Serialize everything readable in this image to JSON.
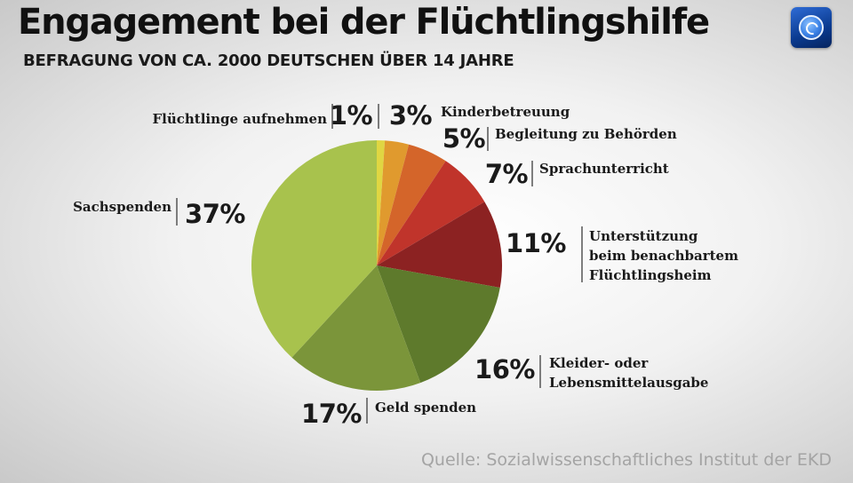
{
  "title": "Engagement bei der Flüchtlingshilfe",
  "subtitle": "BEFRAGUNG VON CA. 2000 DEUTSCHEN ÜBER 14 JAHRE",
  "logo_icon": "tagesschau-globe-icon",
  "source": "Quelle: Sozialwissenschaftliches Institut der EKD",
  "chart_data": {
    "type": "pie",
    "unit": "%",
    "start": "top",
    "direction": "clockwise",
    "slices": [
      {
        "label": "Flüchtlinge aufnehmen",
        "label_lines": [
          "Flüchtlinge aufnehmen"
        ],
        "value": 1,
        "pct_text": "1%",
        "color": "#e0d642",
        "side": "left"
      },
      {
        "label": "Kinderbetreuung",
        "label_lines": [
          "Kinderbetreuung"
        ],
        "value": 3,
        "pct_text": "3%",
        "color": "#e09a2e",
        "side": "right"
      },
      {
        "label": "Begleitung zu Behörden",
        "label_lines": [
          "Begleitung zu Behörden"
        ],
        "value": 5,
        "pct_text": "5%",
        "color": "#d4652a",
        "side": "right"
      },
      {
        "label": "Sprachunterricht",
        "label_lines": [
          "Sprachunterricht"
        ],
        "value": 7,
        "pct_text": "7%",
        "color": "#c0342b",
        "side": "right"
      },
      {
        "label": "Unterstützung beim benachbartem Flüchtlingsheim",
        "label_lines": [
          "Unterstützung",
          "beim benachbartem",
          "Flüchtlingsheim"
        ],
        "value": 11,
        "pct_text": "11%",
        "color": "#8c2222",
        "side": "right"
      },
      {
        "label": "Kleider- oder Lebensmittelausgabe",
        "label_lines": [
          "Kleider- oder",
          "Lebensmittelausgabe"
        ],
        "value": 16,
        "pct_text": "16%",
        "color": "#5e7a2c",
        "side": "right"
      },
      {
        "label": "Geld spenden",
        "label_lines": [
          "Geld spenden"
        ],
        "value": 17,
        "pct_text": "17%",
        "color": "#7b953a",
        "side": "right"
      },
      {
        "label": "Sachspenden",
        "label_lines": [
          "Sachspenden"
        ],
        "value": 37,
        "pct_text": "37%",
        "color": "#a8c24d",
        "side": "left"
      }
    ]
  }
}
